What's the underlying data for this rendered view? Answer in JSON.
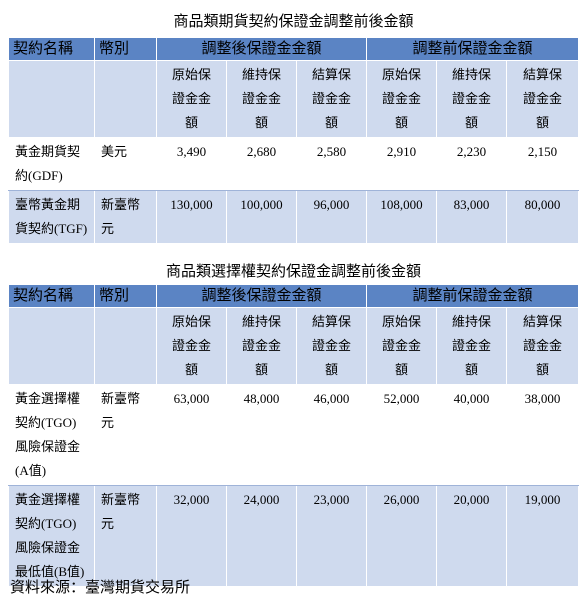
{
  "table1": {
    "title": "商品類期貨契約保證金調整前後金額",
    "header_top": [
      "契約名稱",
      "幣別",
      "調整後保證金金額",
      "調整前保證金金額"
    ],
    "header_sub": [
      "原始保證金金額",
      "維持保證金金額",
      "結算保證金金額",
      "原始保證金金額",
      "維持保證金金額",
      "結算保證金金額"
    ],
    "rows": [
      [
        "黃金期貨契約(GDF)",
        "美元",
        "3,490",
        "2,680",
        "2,580",
        "2,910",
        "2,230",
        "2,150"
      ],
      [
        "臺幣黃金期貨契約(TGF)",
        "新臺幣元",
        "130,000",
        "100,000",
        "96,000",
        "108,000",
        "83,000",
        "80,000"
      ]
    ]
  },
  "table2": {
    "title": "商品類選擇權契約保證金調整前後金額",
    "header_top": [
      "契約名稱",
      "幣別",
      "調整後保證金金額",
      "調整前保證金金額"
    ],
    "header_sub": [
      "原始保證金金額",
      "維持保證金金額",
      "結算保證金金額",
      "原始保證金金額",
      "維持保證金金額",
      "結算保證金金額"
    ],
    "rows": [
      [
        "黃金選擇權契約(TGO)風險保證金(A值)",
        "新臺幣元",
        "63,000",
        "48,000",
        "46,000",
        "52,000",
        "40,000",
        "38,000"
      ],
      [
        "黃金選擇權契約(TGO)風險保證金最低值(B值)",
        "新臺幣元",
        "32,000",
        "24,000",
        "23,000",
        "26,000",
        "20,000",
        "19,000"
      ]
    ]
  },
  "source": "資料來源：臺灣期貨交易所"
}
